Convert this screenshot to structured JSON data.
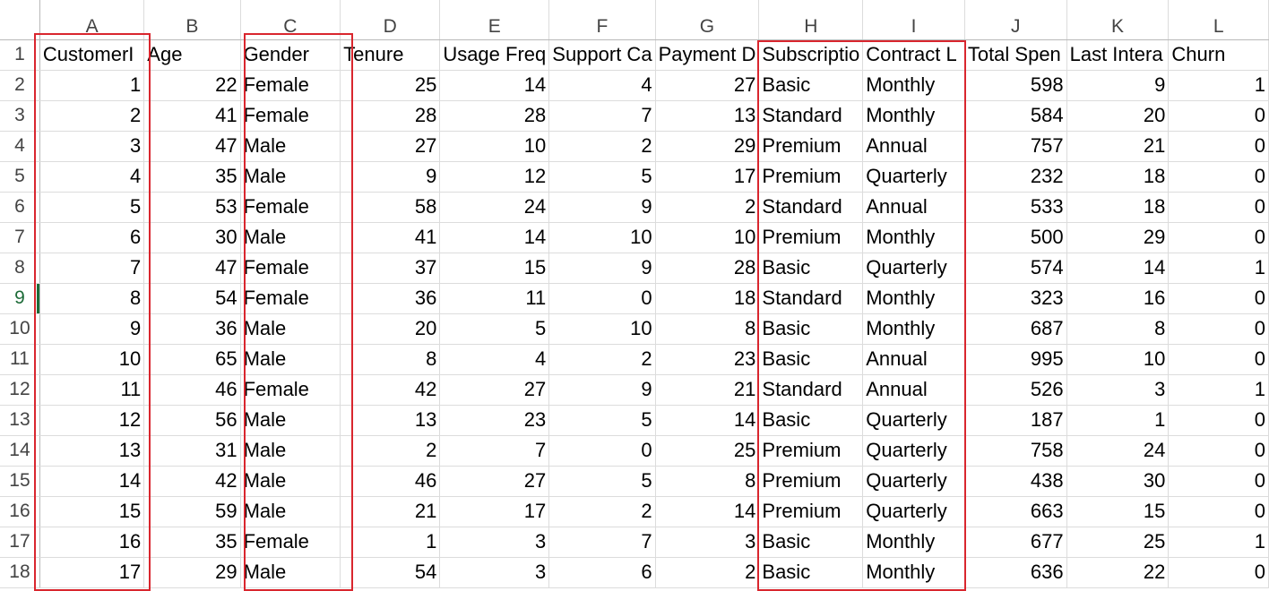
{
  "columns": [
    "A",
    "B",
    "C",
    "D",
    "E",
    "F",
    "G",
    "H",
    "I",
    "J",
    "K",
    "L"
  ],
  "column_types": [
    "num",
    "num",
    "txt",
    "num",
    "num",
    "num",
    "num",
    "txt",
    "txt",
    "num",
    "num",
    "num"
  ],
  "active_row": 9,
  "rows": [
    [
      "CustomerI",
      "Age",
      "Gender",
      "Tenure",
      "Usage Freq",
      "Support Ca",
      "Payment D",
      "Subscriptio",
      "Contract L",
      "Total Spen",
      "Last Intera",
      "Churn"
    ],
    [
      "1",
      "22",
      "Female",
      "25",
      "14",
      "4",
      "27",
      "Basic",
      "Monthly",
      "598",
      "9",
      "1"
    ],
    [
      "2",
      "41",
      "Female",
      "28",
      "28",
      "7",
      "13",
      "Standard",
      "Monthly",
      "584",
      "20",
      "0"
    ],
    [
      "3",
      "47",
      "Male",
      "27",
      "10",
      "2",
      "29",
      "Premium",
      "Annual",
      "757",
      "21",
      "0"
    ],
    [
      "4",
      "35",
      "Male",
      "9",
      "12",
      "5",
      "17",
      "Premium",
      "Quarterly",
      "232",
      "18",
      "0"
    ],
    [
      "5",
      "53",
      "Female",
      "58",
      "24",
      "9",
      "2",
      "Standard",
      "Annual",
      "533",
      "18",
      "0"
    ],
    [
      "6",
      "30",
      "Male",
      "41",
      "14",
      "10",
      "10",
      "Premium",
      "Monthly",
      "500",
      "29",
      "0"
    ],
    [
      "7",
      "47",
      "Female",
      "37",
      "15",
      "9",
      "28",
      "Basic",
      "Quarterly",
      "574",
      "14",
      "1"
    ],
    [
      "8",
      "54",
      "Female",
      "36",
      "11",
      "0",
      "18",
      "Standard",
      "Monthly",
      "323",
      "16",
      "0"
    ],
    [
      "9",
      "36",
      "Male",
      "20",
      "5",
      "10",
      "8",
      "Basic",
      "Monthly",
      "687",
      "8",
      "0"
    ],
    [
      "10",
      "65",
      "Male",
      "8",
      "4",
      "2",
      "23",
      "Basic",
      "Annual",
      "995",
      "10",
      "0"
    ],
    [
      "11",
      "46",
      "Female",
      "42",
      "27",
      "9",
      "21",
      "Standard",
      "Annual",
      "526",
      "3",
      "1"
    ],
    [
      "12",
      "56",
      "Male",
      "13",
      "23",
      "5",
      "14",
      "Basic",
      "Quarterly",
      "187",
      "1",
      "0"
    ],
    [
      "13",
      "31",
      "Male",
      "2",
      "7",
      "0",
      "25",
      "Premium",
      "Quarterly",
      "758",
      "24",
      "0"
    ],
    [
      "14",
      "42",
      "Male",
      "46",
      "27",
      "5",
      "8",
      "Premium",
      "Quarterly",
      "438",
      "30",
      "0"
    ],
    [
      "15",
      "59",
      "Male",
      "21",
      "17",
      "2",
      "14",
      "Premium",
      "Quarterly",
      "663",
      "15",
      "0"
    ],
    [
      "16",
      "35",
      "Female",
      "1",
      "3",
      "7",
      "3",
      "Basic",
      "Monthly",
      "677",
      "25",
      "1"
    ],
    [
      "17",
      "29",
      "Male",
      "54",
      "3",
      "6",
      "2",
      "Basic",
      "Monthly",
      "636",
      "22",
      "0"
    ]
  ],
  "highlight_color": "#d9262e",
  "highlighted_columns": [
    [
      "A"
    ],
    [
      "C"
    ],
    [
      "H",
      "I"
    ]
  ]
}
